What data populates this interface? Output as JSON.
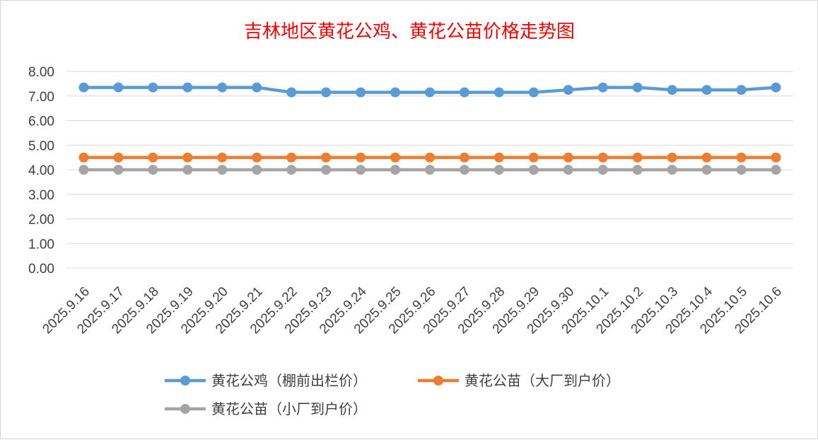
{
  "chart_data": {
    "type": "line",
    "title": "吉林地区黄花公鸡、黄花公苗价格走势图",
    "x": [
      "2025.9.16",
      "2025.9.17",
      "2025.9.18",
      "2025.9.19",
      "2025.9.20",
      "2025.9.21",
      "2025.9.22",
      "2025.9.23",
      "2025.9.24",
      "2025.9.25",
      "2025.9.26",
      "2025.9.27",
      "2025.9.28",
      "2025.9.29",
      "2025.9.30",
      "2025.10.1",
      "2025.10.2",
      "2025.10.3",
      "2025.10.4",
      "2025.10.5",
      "2025.10.6"
    ],
    "yticks": [
      "0.00",
      "1.00",
      "2.00",
      "3.00",
      "4.00",
      "5.00",
      "6.00",
      "7.00",
      "8.00"
    ],
    "ylim": [
      0,
      8
    ],
    "grid": true,
    "legend_position": "bottom",
    "series": [
      {
        "name": "黄花公鸡（棚前出栏价）",
        "color": "#5b9bd5",
        "values": [
          7.35,
          7.35,
          7.35,
          7.35,
          7.35,
          7.35,
          7.15,
          7.15,
          7.15,
          7.15,
          7.15,
          7.15,
          7.15,
          7.15,
          7.25,
          7.35,
          7.35,
          7.25,
          7.25,
          7.25,
          7.35
        ]
      },
      {
        "name": "黄花公苗（大厂到户价）",
        "color": "#ed7d31",
        "values": [
          4.5,
          4.5,
          4.5,
          4.5,
          4.5,
          4.5,
          4.5,
          4.5,
          4.5,
          4.5,
          4.5,
          4.5,
          4.5,
          4.5,
          4.5,
          4.5,
          4.5,
          4.5,
          4.5,
          4.5,
          4.5
        ]
      },
      {
        "name": "黄花公苗（小厂到户价）",
        "color": "#a5a5a5",
        "values": [
          4.0,
          4.0,
          4.0,
          4.0,
          4.0,
          4.0,
          4.0,
          4.0,
          4.0,
          4.0,
          4.0,
          4.0,
          4.0,
          4.0,
          4.0,
          4.0,
          4.0,
          4.0,
          4.0,
          4.0,
          4.0
        ]
      }
    ]
  }
}
